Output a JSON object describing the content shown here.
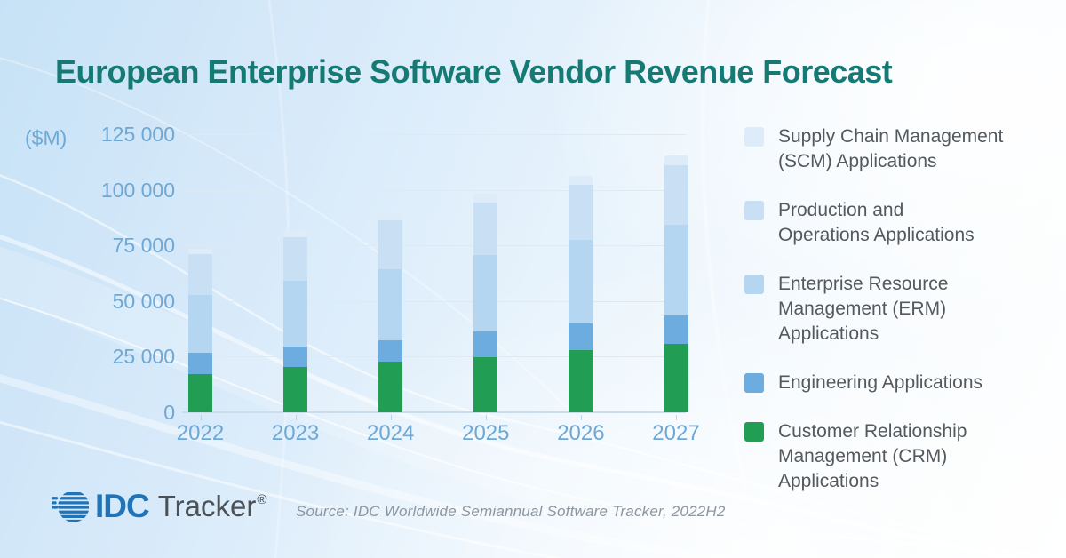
{
  "title": "European Enterprise Software Vendor Revenue Forecast",
  "chart": {
    "unit_label": "($M)"
  },
  "chart_data": {
    "type": "bar",
    "stacked": true,
    "title": "European Enterprise Software Vendor Revenue Forecast",
    "categories": [
      "2022",
      "2023",
      "2024",
      "2025",
      "2026",
      "2027"
    ],
    "series": [
      {
        "name": "Customer Relationship Management (CRM) Applications",
        "color": "#229d54",
        "values": [
          17300,
          20300,
          22900,
          24900,
          28100,
          30800
        ]
      },
      {
        "name": "Engineering Applications",
        "color": "#6cacdf",
        "values": [
          9300,
          9400,
          9600,
          11400,
          11700,
          12700
        ]
      },
      {
        "name": "Enterprise Resource Management (ERM) Applications",
        "color": "#b5d6f0",
        "values": [
          26200,
          29300,
          32000,
          34300,
          37500,
          40900
        ]
      },
      {
        "name": "Production and Operations Applications",
        "color": "#c8dff4",
        "values": [
          18300,
          19600,
          21900,
          23500,
          24900,
          26800
        ]
      },
      {
        "name": "Supply Chain Management (SCM) Applications",
        "color": "#deebf8",
        "values": [
          2400,
          3400,
          2600,
          4000,
          4000,
          4400
        ]
      }
    ],
    "stack_note": "first series renders at bottom of each bar",
    "approx_totals": [
      73500,
      82000,
      89000,
      98100,
      106200,
      115600
    ],
    "ylim": [
      0,
      125000
    ],
    "yticks": [
      0,
      25000,
      50000,
      75000,
      100000,
      125000
    ],
    "ytick_labels": [
      "0",
      "25 000",
      "50 000",
      "75 000",
      "100 000",
      "125 000"
    ],
    "ylabel": "($M)",
    "xlabel": "",
    "grid": true,
    "legend_position": "right"
  },
  "legend": {
    "items": [
      {
        "label": "Supply Chain Management (SCM) Applications",
        "lines": [
          "Supply Chain Management",
          "(SCM) Applications"
        ],
        "color": "#deebf8"
      },
      {
        "label": "Production and Operations Applications",
        "lines": [
          "Production and",
          "Operations Applications"
        ],
        "color": "#c8dff4"
      },
      {
        "label": "Enterprise Resource Management (ERM) Applications",
        "lines": [
          "Enterprise Resource",
          "Management (ERM)",
          "Applications"
        ],
        "color": "#b5d6f0"
      },
      {
        "label": "Engineering Applications",
        "lines": [
          "Engineering Applications"
        ],
        "color": "#6cacdf"
      },
      {
        "label": "Customer Relationship Management (CRM) Applications",
        "lines": [
          "Customer Relationship",
          "Management (CRM)",
          "Applications"
        ],
        "color": "#229d54"
      }
    ]
  },
  "footer": {
    "logo_brand": "IDC",
    "logo_product": "Tracker",
    "registered_mark": "®",
    "source": "Source: IDC Worldwide Semiannual Software Tracker, 2022H2"
  },
  "colors": {
    "title": "#157a73",
    "axis_text": "#6ea8d4",
    "legend_text": "#54595d",
    "idc_blue": "#2173b8",
    "gridline": "#dde9f3"
  }
}
